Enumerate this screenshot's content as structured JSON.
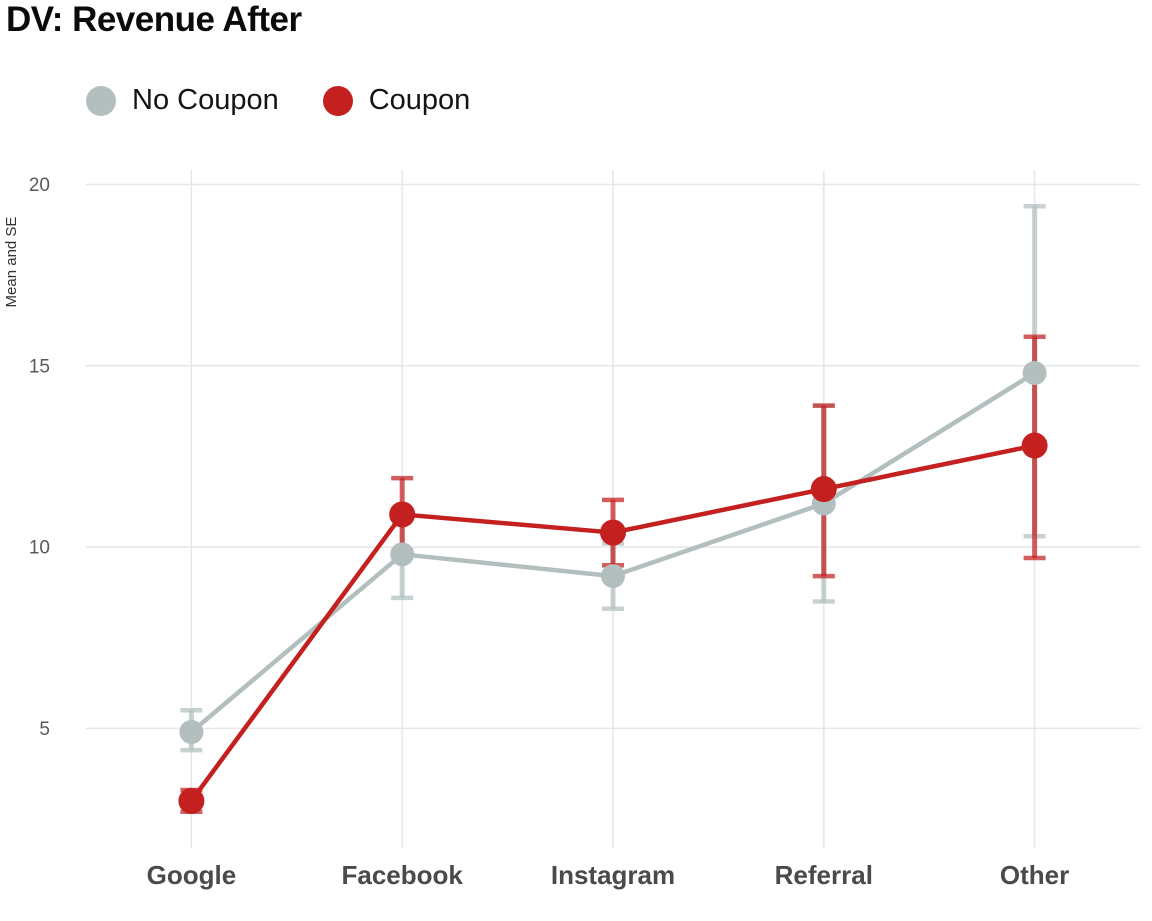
{
  "page": {
    "title": "DV: Revenue After"
  },
  "legend": {
    "items": [
      {
        "label": "No Coupon",
        "color": "#b3bfbf"
      },
      {
        "label": "Coupon",
        "color": "#c3201f"
      }
    ]
  },
  "chart_data": {
    "type": "line",
    "title": "DV: Revenue After",
    "xlabel": "",
    "ylabel": "Mean and SE",
    "categories": [
      "Google",
      "Facebook",
      "Instagram",
      "Referral",
      "Other"
    ],
    "yticks": [
      5,
      10,
      15,
      20
    ],
    "ylim": [
      1.7,
      20.4
    ],
    "grid": true,
    "legend_position": "top-left",
    "error_bars": true,
    "series": [
      {
        "name": "No Coupon",
        "color": "#b3bfbf",
        "values": [
          4.9,
          9.8,
          9.2,
          11.2,
          14.8
        ],
        "se_low": [
          4.4,
          8.6,
          8.3,
          8.5,
          10.3
        ],
        "se_high": [
          5.5,
          11.0,
          10.1,
          13.9,
          19.4
        ]
      },
      {
        "name": "Coupon",
        "color": "#c3201f",
        "values": [
          3.0,
          10.9,
          10.4,
          11.6,
          12.8
        ],
        "se_low": [
          2.7,
          9.9,
          9.5,
          9.2,
          9.7
        ],
        "se_high": [
          3.3,
          11.9,
          11.3,
          13.9,
          15.8
        ]
      }
    ]
  }
}
